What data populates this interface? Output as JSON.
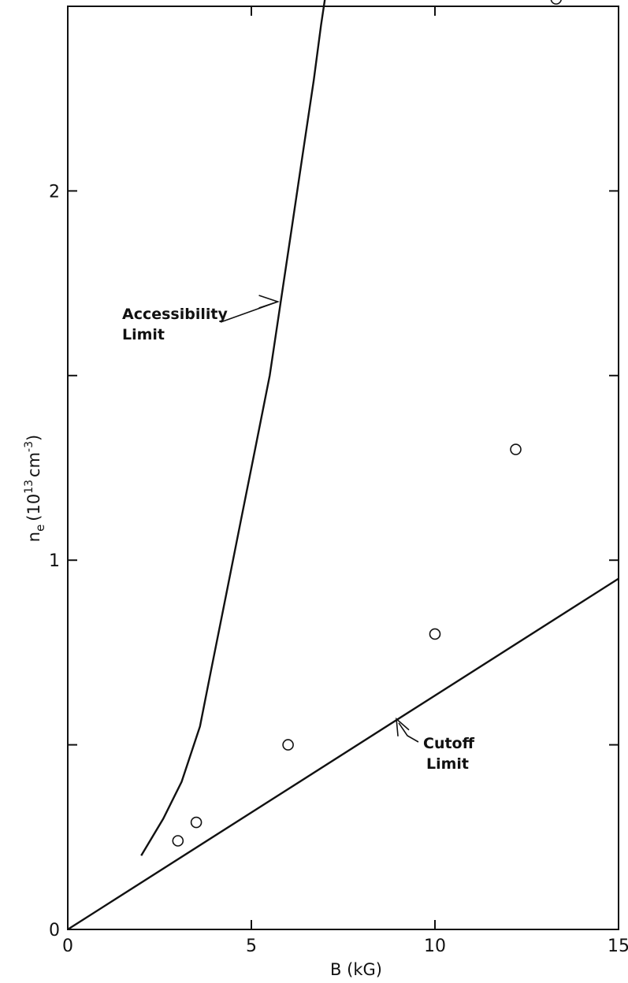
{
  "chart_data": {
    "type": "scatter",
    "title": "",
    "xlabel": "B (kG)",
    "ylabel": "n",
    "ylabel_sub": "e",
    "ylabel_unit_prefix": "(10",
    "ylabel_unit_exp1": "13",
    "ylabel_unit_mid": "cm",
    "ylabel_unit_exp2": "-3",
    "ylabel_unit_suffix": ")",
    "xlim": [
      0,
      15
    ],
    "ylim": [
      0,
      2.5
    ],
    "grid": false,
    "x_ticks": [
      0,
      5,
      10,
      15
    ],
    "x_tick_labels": [
      "0",
      "5",
      "10",
      "15"
    ],
    "y_ticks": [
      0,
      0.5,
      1,
      1.5,
      2,
      2.5
    ],
    "y_tick_labels": [
      "0",
      "",
      "1",
      "",
      "2",
      ""
    ],
    "series": [
      {
        "type": "scatter",
        "values": [
          {
            "x": 3.0,
            "y": 0.24
          },
          {
            "x": 3.5,
            "y": 0.29
          },
          {
            "x": 6.0,
            "y": 0.5
          },
          {
            "x": 10.0,
            "y": 0.8
          },
          {
            "x": 12.2,
            "y": 1.3
          },
          {
            "x": 13.3,
            "y": 2.52
          }
        ]
      },
      {
        "type": "line",
        "label": "Cutoff Limit",
        "label_lines": [
          "Cutoff",
          "Limit"
        ],
        "values": [
          {
            "x": 0,
            "y": 0
          },
          {
            "x": 15,
            "y": 0.95
          }
        ]
      },
      {
        "type": "line",
        "label": "Accessibility Limit",
        "label_lines": [
          "Accessibility",
          "Limit"
        ],
        "values": [
          {
            "x": 2.0,
            "y": 0.2
          },
          {
            "x": 2.6,
            "y": 0.3
          },
          {
            "x": 3.1,
            "y": 0.4
          },
          {
            "x": 3.6,
            "y": 0.55
          },
          {
            "x": 3.9,
            "y": 0.7
          },
          {
            "x": 4.3,
            "y": 0.9
          },
          {
            "x": 4.7,
            "y": 1.1
          },
          {
            "x": 5.1,
            "y": 1.3
          },
          {
            "x": 5.5,
            "y": 1.5
          },
          {
            "x": 5.8,
            "y": 1.7
          },
          {
            "x": 6.1,
            "y": 1.9
          },
          {
            "x": 6.4,
            "y": 2.1
          },
          {
            "x": 6.7,
            "y": 2.3
          },
          {
            "x": 6.9,
            "y": 2.45
          },
          {
            "x": 7.05,
            "y": 2.55
          }
        ]
      }
    ]
  }
}
